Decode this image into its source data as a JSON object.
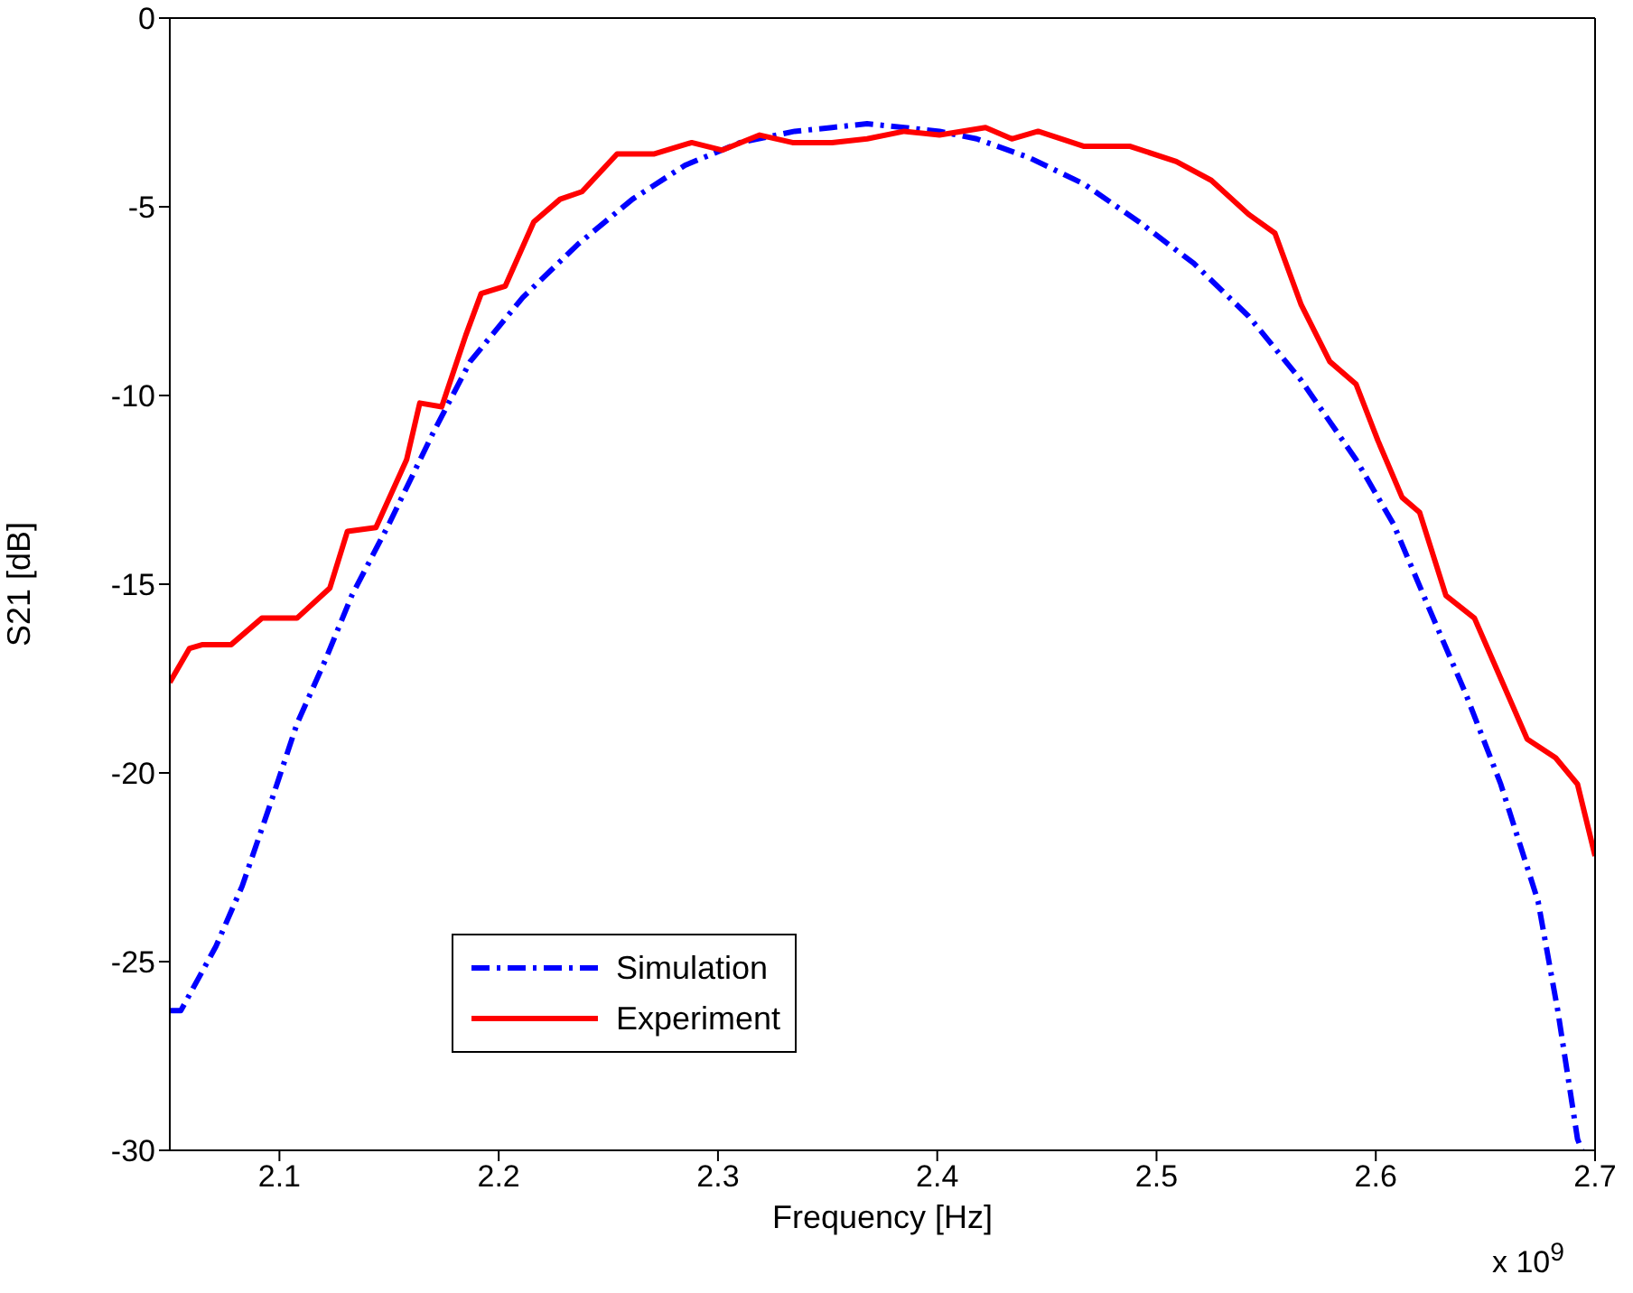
{
  "chart_data": {
    "type": "line",
    "xlabel": "Frequency [Hz]",
    "ylabel": "S21 [dB]",
    "annotations": [
      "x 10$^{9}$"
    ],
    "xlim": [
      2.05,
      2.7
    ],
    "xticks": [
      2.1,
      2.2,
      2.3,
      2.4,
      2.5,
      2.6,
      2.7
    ],
    "ylim": [
      -30,
      0
    ],
    "yticks": [
      -30,
      -25,
      -20,
      -15,
      -10,
      -5,
      0
    ],
    "legend": "bottom left",
    "marker": "none",
    "series": [
      {
        "name": "Simulation",
        "color": "#0000ff",
        "line_style": "dashdot",
        "x": [
          2.05,
          2.055,
          2.071,
          2.083,
          2.096,
          2.108,
          2.121,
          2.133,
          2.15,
          2.17,
          2.187,
          2.211,
          2.236,
          2.261,
          2.285,
          2.31,
          2.335,
          2.352,
          2.368,
          2.385,
          2.401,
          2.418,
          2.442,
          2.467,
          2.492,
          2.517,
          2.542,
          2.566,
          2.591,
          2.608,
          2.624,
          2.641,
          2.657,
          2.674,
          2.683,
          2.692,
          2.694
        ],
        "values": [
          -26.3,
          -26.3,
          -24.6,
          -23.0,
          -20.8,
          -18.7,
          -17.0,
          -15.3,
          -13.4,
          -11.0,
          -9.1,
          -7.4,
          -6.0,
          -4.8,
          -3.9,
          -3.3,
          -3.0,
          -2.9,
          -2.8,
          -2.9,
          -3.0,
          -3.2,
          -3.7,
          -4.4,
          -5.4,
          -6.5,
          -7.9,
          -9.6,
          -11.7,
          -13.4,
          -15.6,
          -17.9,
          -20.3,
          -23.4,
          -26.3,
          -29.7,
          -30
        ]
      },
      {
        "name": "Experiment",
        "color": "#ff0000",
        "line_style": "solid",
        "x": [
          2.05,
          2.059,
          2.065,
          2.078,
          2.092,
          2.108,
          2.123,
          2.131,
          2.144,
          2.158,
          2.164,
          2.174,
          2.185,
          2.192,
          2.203,
          2.216,
          2.228,
          2.238,
          2.254,
          2.271,
          2.288,
          2.302,
          2.319,
          2.334,
          2.352,
          2.368,
          2.385,
          2.401,
          2.422,
          2.434,
          2.446,
          2.467,
          2.488,
          2.509,
          2.525,
          2.542,
          2.554,
          2.566,
          2.579,
          2.591,
          2.601,
          2.612,
          2.62,
          2.632,
          2.645,
          2.657,
          2.669,
          2.682,
          2.692,
          2.7
        ],
        "values": [
          -17.6,
          -16.7,
          -16.6,
          -16.6,
          -15.9,
          -15.9,
          -15.1,
          -13.6,
          -13.5,
          -11.7,
          -10.2,
          -10.3,
          -8.4,
          -7.3,
          -7.1,
          -5.4,
          -4.8,
          -4.6,
          -3.6,
          -3.6,
          -3.3,
          -3.5,
          -3.1,
          -3.3,
          -3.3,
          -3.2,
          -3.0,
          -3.1,
          -2.9,
          -3.2,
          -3.0,
          -3.4,
          -3.4,
          -3.8,
          -4.3,
          -5.2,
          -5.7,
          -7.6,
          -9.1,
          -9.7,
          -11.2,
          -12.7,
          -13.1,
          -15.3,
          -15.9,
          -17.5,
          -19.1,
          -19.6,
          -20.3,
          -22.2
        ]
      }
    ]
  }
}
